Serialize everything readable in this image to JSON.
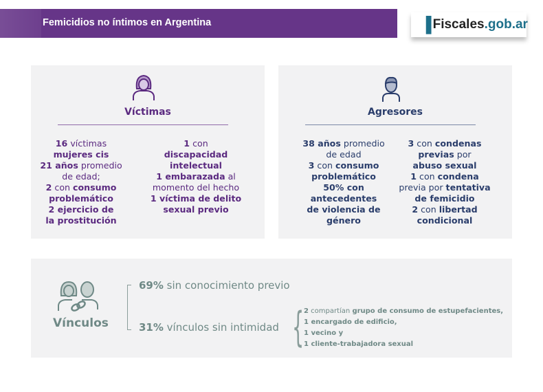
{
  "header": {
    "title": "Femicidios no íntimos en Argentina"
  },
  "logo": {
    "brand": "Fiscales",
    "domain": ".gob.ar"
  },
  "colors": {
    "header": "#663588",
    "victimas": "#5b2a80",
    "agresores": "#2a3d6b",
    "vinculos": "#6f8986",
    "panel": "#f2f2f3"
  },
  "victimas": {
    "icon": "woman-icon",
    "title": "Víctimas",
    "col1": [
      [
        {
          "t": "16",
          "b": true
        },
        {
          "t": " víctimas"
        }
      ],
      [
        {
          "t": "mujeres cis",
          "b": true
        }
      ],
      [
        {
          "t": "21 años",
          "b": true
        },
        {
          "t": " promedio"
        }
      ],
      [
        {
          "t": "de edad;"
        }
      ],
      [
        {
          "t": "2",
          "b": true
        },
        {
          "t": " con "
        },
        {
          "t": "consumo",
          "b": true
        }
      ],
      [
        {
          "t": "problemático",
          "b": true
        }
      ],
      [
        {
          "t": "2 ejercicio de",
          "b": true
        }
      ],
      [
        {
          "t": "la prostitución",
          "b": true
        }
      ]
    ],
    "col2": [
      [
        {
          "t": "1",
          "b": true
        },
        {
          "t": " con"
        }
      ],
      [
        {
          "t": "discapacidad",
          "b": true
        }
      ],
      [
        {
          "t": "intelectual",
          "b": true
        }
      ],
      [
        {
          "t": "1 embarazada",
          "b": true
        },
        {
          "t": " al"
        }
      ],
      [
        {
          "t": "momento del hecho"
        }
      ],
      [
        {
          "t": "1 víctima de delito",
          "b": true
        }
      ],
      [
        {
          "t": "sexual previo",
          "b": true
        }
      ]
    ]
  },
  "agresores": {
    "icon": "man-icon",
    "title": "Agresores",
    "col1": [
      [
        {
          "t": "38 años",
          "b": true
        },
        {
          "t": " promedio"
        }
      ],
      [
        {
          "t": "de edad"
        }
      ],
      [
        {
          "t": "3",
          "b": true
        },
        {
          "t": " con "
        },
        {
          "t": "consumo",
          "b": true
        }
      ],
      [
        {
          "t": "problemático",
          "b": true
        }
      ],
      [
        {
          "t": "50% con",
          "b": true
        }
      ],
      [
        {
          "t": "antecedentes",
          "b": true
        }
      ],
      [
        {
          "t": "de violencia de",
          "b": true
        }
      ],
      [
        {
          "t": "género",
          "b": true
        }
      ]
    ],
    "col2": [
      [
        {
          "t": "3",
          "b": true
        },
        {
          "t": " con "
        },
        {
          "t": "condenas",
          "b": true
        }
      ],
      [
        {
          "t": "previas",
          "b": true
        },
        {
          "t": " por"
        }
      ],
      [
        {
          "t": "abuso sexual",
          "b": true
        }
      ],
      [
        {
          "t": "1",
          "b": true
        },
        {
          "t": " con "
        },
        {
          "t": "condena",
          "b": true
        }
      ],
      [
        {
          "t": "previa por "
        },
        {
          "t": "tentativa",
          "b": true
        }
      ],
      [
        {
          "t": "de femicidio",
          "b": true
        }
      ],
      [
        {
          "t": "2",
          "b": true
        },
        {
          "t": " con "
        },
        {
          "t": "libertad",
          "b": true
        }
      ],
      [
        {
          "t": "condicional",
          "b": true
        }
      ]
    ]
  },
  "vinculos": {
    "icon": "people-link-icon",
    "title": "Vínculos",
    "stat1": {
      "pct": "69%",
      "text": " sin conocimiento previo"
    },
    "stat2": {
      "pct": "31%",
      "text": " vínculos sin intimidad"
    },
    "details": [
      [
        {
          "t": "2",
          "b": true
        },
        {
          "t": " compartían "
        },
        {
          "t": "grupo de consumo de estupefacientes,",
          "b": true
        }
      ],
      [
        {
          "t": "1 encargado de edificio,",
          "b": true
        }
      ],
      [
        {
          "t": "1 vecino y",
          "b": true
        }
      ],
      [
        {
          "t": "1 cliente-trabajadora sexual",
          "b": true
        }
      ]
    ]
  }
}
